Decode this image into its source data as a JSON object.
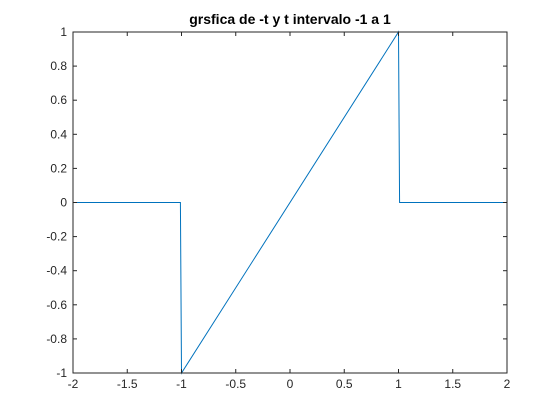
{
  "chart_data": {
    "type": "line",
    "title": "grsfica de -t y t intervalo -1 a 1",
    "xlabel": "",
    "ylabel": "",
    "xlim": [
      -2,
      2
    ],
    "ylim": [
      -1,
      1
    ],
    "x_ticks": [
      -2,
      -1.5,
      -1,
      -0.5,
      0,
      0.5,
      1,
      1.5,
      2
    ],
    "x_tick_labels": [
      "-2",
      "-1.5",
      "-1",
      "-0.5",
      "0",
      "0.5",
      "1",
      "1.5",
      "2"
    ],
    "y_ticks": [
      -1,
      -0.8,
      -0.6,
      -0.4,
      -0.2,
      0,
      0.2,
      0.4,
      0.6,
      0.8,
      1
    ],
    "y_tick_labels": [
      "-1",
      "-0.8",
      "-0.6",
      "-0.4",
      "-0.2",
      "0",
      "0.2",
      "0.4",
      "0.6",
      "0.8",
      "1"
    ],
    "grid": false,
    "series": [
      {
        "color": "#0072BD",
        "x": [
          -2,
          -1.01,
          -1,
          1,
          1.01,
          2
        ],
        "y": [
          0,
          0,
          -1,
          1,
          0,
          0
        ]
      }
    ]
  }
}
